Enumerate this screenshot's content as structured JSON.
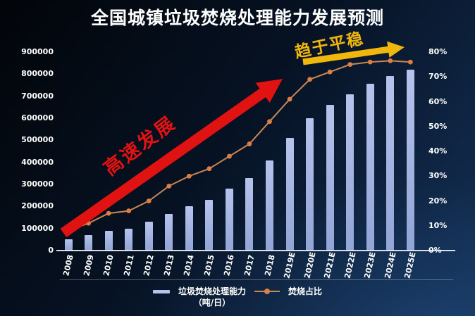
{
  "chart_data": {
    "type": "bar+line",
    "title": "全国城镇垃圾焚烧处理能力发展预测",
    "categories": [
      "2008",
      "2009",
      "2010",
      "2011",
      "2012",
      "2013",
      "2014",
      "2015",
      "2016",
      "2017",
      "2018",
      "2019E",
      "2020E",
      "2021E",
      "2022E",
      "2023E",
      "2024E",
      "2025E"
    ],
    "series": [
      {
        "name": "垃圾焚烧处理能力（吨/日）",
        "type": "bar",
        "axis": "left",
        "values": [
          50000,
          70000,
          90000,
          100000,
          130000,
          165000,
          200000,
          230000,
          280000,
          330000,
          410000,
          510000,
          600000,
          660000,
          710000,
          755000,
          790000,
          820000
        ]
      },
      {
        "name": "焚烧占比",
        "type": "line",
        "axis": "right",
        "values": [
          8,
          11,
          15,
          16,
          20,
          26,
          30,
          33,
          38,
          43,
          52,
          61,
          69,
          72,
          75,
          76,
          76.5,
          76
        ]
      }
    ],
    "left_axis": {
      "min": 0,
      "max": 900000,
      "ticks": [
        "0",
        "100000",
        "200000",
        "300000",
        "400000",
        "500000",
        "600000",
        "700000",
        "800000",
        "900000"
      ]
    },
    "right_axis": {
      "min": 0,
      "max": 80,
      "ticks": [
        "0%",
        "10%",
        "20%",
        "30%",
        "40%",
        "50%",
        "60%",
        "70%",
        "80%"
      ]
    },
    "grid": false,
    "legend_position": "bottom"
  },
  "legend": {
    "bar_label": "垃圾焚烧处理能力",
    "bar_unit": "（吨/日）",
    "line_label": "焚烧占比"
  },
  "annotations": {
    "growth": {
      "text": "高速发展",
      "color": "#e01212"
    },
    "stable": {
      "text": "趋于平稳",
      "color": "#f0b70c"
    }
  },
  "colors": {
    "title_text": "#ffffff",
    "axis_text": "#ffffff",
    "bar_top": "#b6c3ec",
    "bar_bottom": "#92a5d6",
    "line": "#c98753",
    "dot": "#dd7f45",
    "baseline": "#e9eef6"
  }
}
